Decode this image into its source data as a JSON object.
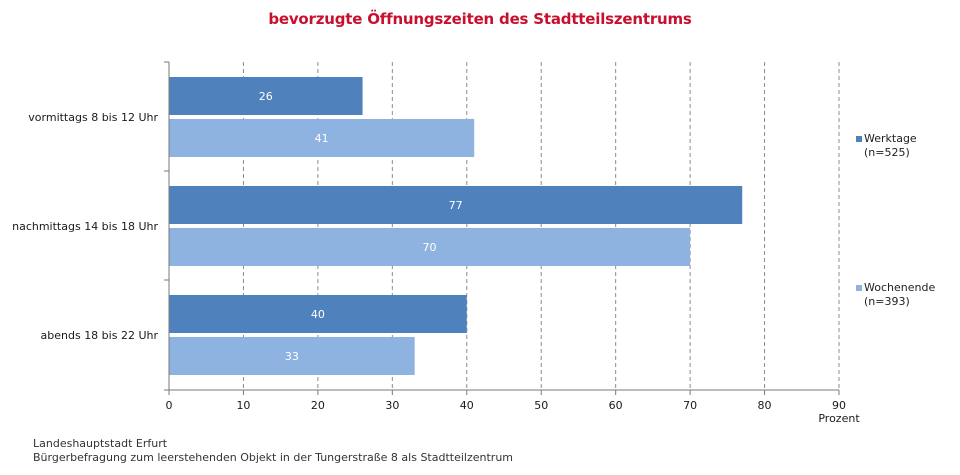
{
  "title": "bevorzugte Öffnungszeiten des Stadtteilszentrums",
  "title_color": "#c8102e",
  "source_lines": [
    "Landeshauptstadt Erfurt",
    "Bürgerbefragung zum leerstehenden Objekt in der Tungerstraße 8 als Stadtteilzentrum"
  ],
  "chart_data": {
    "type": "bar",
    "orientation": "horizontal",
    "title": "bevorzugte Öffnungszeiten des Stadtteilszentrums",
    "categories": [
      "vormittags 8 bis 12 Uhr",
      "nachmittags 14 bis 18 Uhr",
      "abends 18 bis 22 Uhr"
    ],
    "series": [
      {
        "name": "Werktage",
        "name_line2": "(n=525)",
        "values": [
          26,
          77,
          40
        ],
        "color": "#4f81bd"
      },
      {
        "name": "Wochenende",
        "name_line2": "(n=393)",
        "values": [
          41,
          70,
          33
        ],
        "color": "#8fb3e0"
      }
    ],
    "value_labels": {
      "Werktage": [
        "26",
        "77",
        "40"
      ],
      "Wochenende": [
        "41",
        "70",
        "33"
      ]
    },
    "xlim": [
      0,
      90
    ],
    "xticks": [
      "0",
      "10",
      "20",
      "30",
      "40",
      "50",
      "60",
      "70",
      "80",
      "90"
    ],
    "xlabel": "Prozent",
    "ylabel": "",
    "grid": "vertical dashed",
    "legend_position": "right"
  }
}
